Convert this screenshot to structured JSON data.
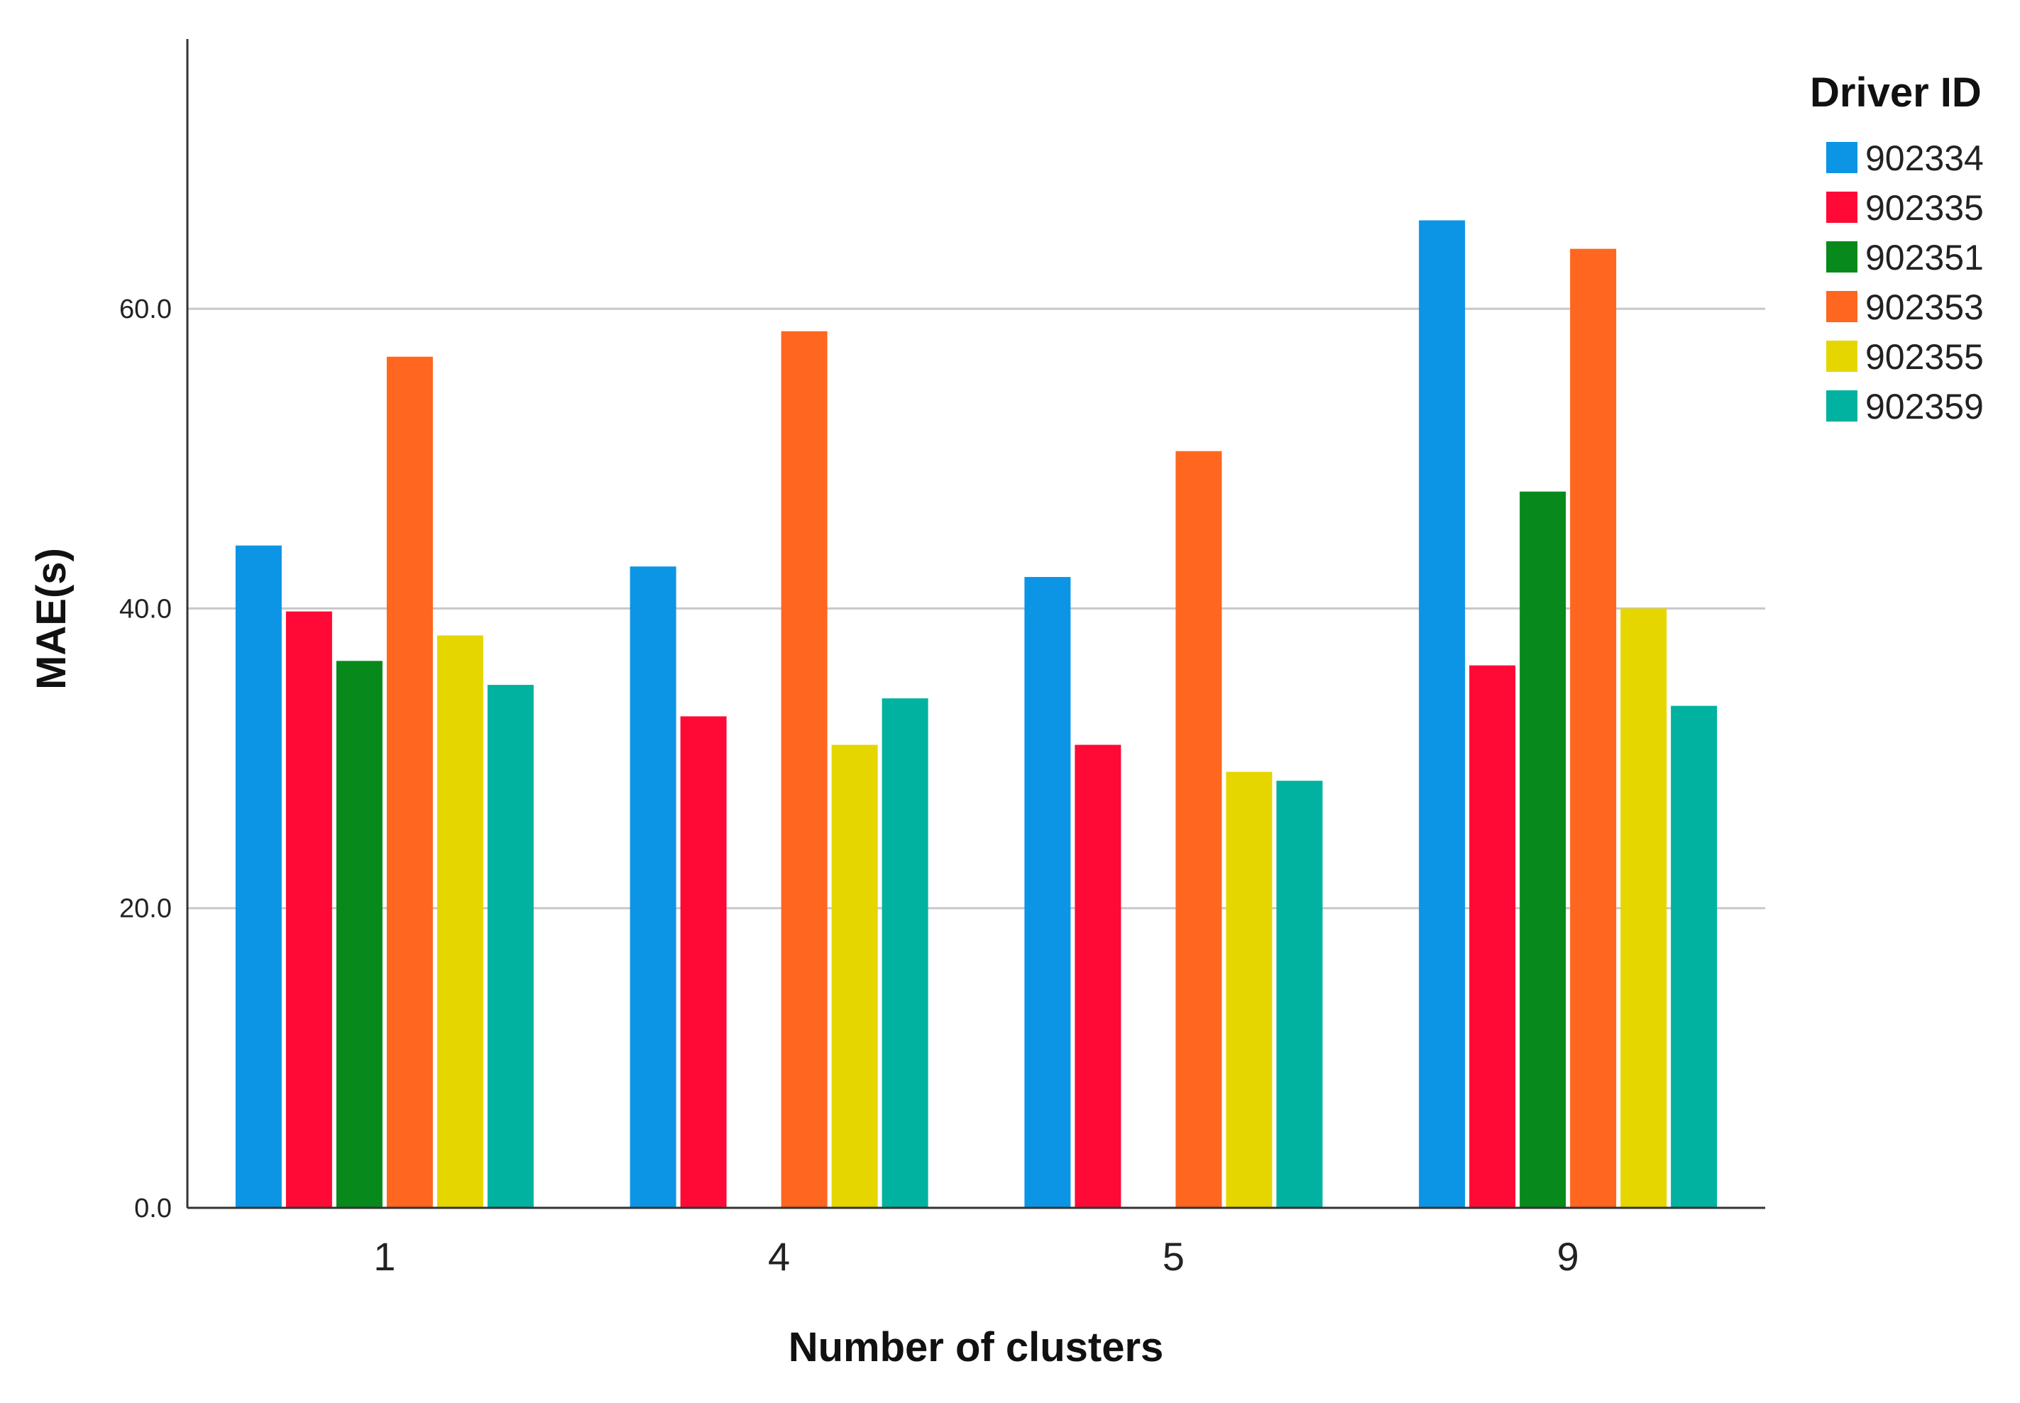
{
  "chart_data": {
    "type": "bar",
    "title": "",
    "xlabel": "Number of clusters",
    "ylabel": "MAE(s)",
    "categories": [
      "1",
      "4",
      "5",
      "9"
    ],
    "ylim": [
      0,
      78
    ],
    "yticks": [
      0,
      20,
      40,
      60
    ],
    "ytick_labels": [
      "0.0",
      "20.0",
      "40.0",
      "60.0"
    ],
    "grid": true,
    "legend_position": "right",
    "legend_title": "Driver ID",
    "series": [
      {
        "name": "902334",
        "color": "#0C95E5",
        "values": [
          44.2,
          42.8,
          42.1,
          65.9
        ]
      },
      {
        "name": "902335",
        "color": "#FF0A36",
        "values": [
          39.8,
          32.8,
          30.9,
          36.2
        ]
      },
      {
        "name": "902351",
        "color": "#078A1B",
        "values": [
          36.5,
          null,
          null,
          47.8
        ]
      },
      {
        "name": "902353",
        "color": "#FF661F",
        "values": [
          56.8,
          58.5,
          50.5,
          64.0
        ]
      },
      {
        "name": "902355",
        "color": "#E6D600",
        "values": [
          38.2,
          30.9,
          29.1,
          40.0
        ]
      },
      {
        "name": "902359",
        "color": "#00B29F",
        "values": [
          34.9,
          34.0,
          28.5,
          33.5
        ]
      }
    ]
  }
}
